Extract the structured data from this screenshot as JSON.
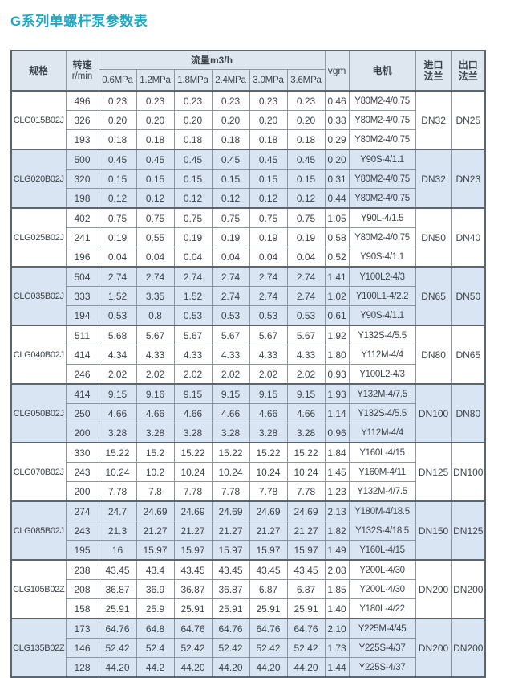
{
  "page": {
    "title": "G系列单螺杆泵参数表"
  },
  "colors": {
    "title": "#1fa7c4",
    "text": "#3d444b",
    "header_bg": "#dee6f0",
    "shaded_row_bg": "#d9e5f3",
    "border_dark": "#5d6670",
    "border_light": "#8d96a0"
  },
  "table": {
    "headers": {
      "spec": "规格",
      "speed_line1": "转速",
      "speed_line2": "r/min",
      "flow_group": "流量m3/h",
      "pressures": [
        "0.6MPa",
        "1.2MPa",
        "1.8MPa",
        "2.4MPa",
        "3.0MPa",
        "3.6MPa"
      ],
      "vgm": "vgm",
      "motor": "电机",
      "inlet_line1": "进口",
      "inlet_line2": "法兰",
      "outlet_line1": "出口",
      "outlet_line2": "法兰"
    },
    "groups": [
      {
        "spec": "CLG015B02J",
        "shaded": false,
        "inlet": "DN32",
        "outlet": "DN25",
        "rows": [
          {
            "speed": "496",
            "flows": [
              "0.23",
              "0.23",
              "0.23",
              "0.23",
              "0.23",
              "0.23"
            ],
            "vgm": "0.46",
            "motor": "Y80M2-4/0.75"
          },
          {
            "speed": "326",
            "flows": [
              "0.20",
              "0.20",
              "0.20",
              "0.20",
              "0.20",
              "0.20"
            ],
            "vgm": "0.38",
            "motor": "Y80M2-4/0.75"
          },
          {
            "speed": "193",
            "flows": [
              "0.18",
              "0.18",
              "0.18",
              "0.18",
              "0.18",
              "0.18"
            ],
            "vgm": "0.29",
            "motor": "Y80M2-4/0.75"
          }
        ]
      },
      {
        "spec": "CLG020B02J",
        "shaded": true,
        "inlet": "DN32",
        "outlet": "DN23",
        "rows": [
          {
            "speed": "500",
            "flows": [
              "0.45",
              "0.45",
              "0.45",
              "0.45",
              "0.45",
              "0.45"
            ],
            "vgm": "0.20",
            "motor": "Y90S-4/1.1"
          },
          {
            "speed": "320",
            "flows": [
              "0.15",
              "0.15",
              "0.15",
              "0.15",
              "0.15",
              "0.15"
            ],
            "vgm": "0.31",
            "motor": "Y80M2-4/0.75"
          },
          {
            "speed": "198",
            "flows": [
              "0.12",
              "0.12",
              "0.12",
              "0.12",
              "0.12",
              "0.12"
            ],
            "vgm": "0.44",
            "motor": "Y80M2-4/0.75"
          }
        ]
      },
      {
        "spec": "CLG025B02J",
        "shaded": false,
        "inlet": "DN50",
        "outlet": "DN40",
        "rows": [
          {
            "speed": "402",
            "flows": [
              "0.75",
              "0.75",
              "0.75",
              "0.75",
              "0.75",
              "0.75"
            ],
            "vgm": "1.05",
            "motor": "Y90L-4/1.5"
          },
          {
            "speed": "241",
            "flows": [
              "0.19",
              "0.55",
              "0.19",
              "0.19",
              "0.19",
              "0.19"
            ],
            "vgm": "0.58",
            "motor": "Y80M2-4/0.75"
          },
          {
            "speed": "196",
            "flows": [
              "0.04",
              "0.04",
              "0.04",
              "0.04",
              "0.04",
              "0.04"
            ],
            "vgm": "0.52",
            "motor": "Y90S-4/1.1"
          }
        ]
      },
      {
        "spec": "CLG035B02J",
        "shaded": true,
        "inlet": "DN65",
        "outlet": "DN50",
        "rows": [
          {
            "speed": "504",
            "flows": [
              "2.74",
              "2.74",
              "2.74",
              "2.74",
              "2.74",
              "2.74"
            ],
            "vgm": "1.41",
            "motor": "Y100L2-4/3"
          },
          {
            "speed": "333",
            "flows": [
              "1.52",
              "3.35",
              "1.52",
              "2.74",
              "2.74",
              "2.74"
            ],
            "vgm": "1.02",
            "motor": "Y100L1-4/2.2"
          },
          {
            "speed": "194",
            "flows": [
              "0.53",
              "0.8",
              "0.53",
              "0.53",
              "0.53",
              "0.53"
            ],
            "vgm": "0.61",
            "motor": "Y90S-4/1.1"
          }
        ]
      },
      {
        "spec": "CLG040B02J",
        "shaded": false,
        "inlet": "DN80",
        "outlet": "DN65",
        "rows": [
          {
            "speed": "511",
            "flows": [
              "5.68",
              "5.67",
              "5.67",
              "5.67",
              "5.67",
              "5.67"
            ],
            "vgm": "1.92",
            "motor": "Y132S-4/5.5"
          },
          {
            "speed": "414",
            "flows": [
              "4.34",
              "4.33",
              "4.33",
              "4.33",
              "4.33",
              "4.33"
            ],
            "vgm": "1.80",
            "motor": "Y112M-4/4"
          },
          {
            "speed": "246",
            "flows": [
              "2.02",
              "2.02",
              "2.02",
              "2.02",
              "2.02",
              "2.02"
            ],
            "vgm": "0.93",
            "motor": "Y100L2-4/3"
          }
        ]
      },
      {
        "spec": "CLG050B02J",
        "shaded": true,
        "inlet": "DN100",
        "outlet": "DN80",
        "rows": [
          {
            "speed": "414",
            "flows": [
              "9.15",
              "9.16",
              "9.15",
              "9.15",
              "9.15",
              "9.15"
            ],
            "vgm": "1.93",
            "motor": "Y132M-4/7.5"
          },
          {
            "speed": "250",
            "flows": [
              "4.66",
              "4.66",
              "4.66",
              "4.66",
              "4.66",
              "4.66"
            ],
            "vgm": "1.14",
            "motor": "Y132S-4/5.5"
          },
          {
            "speed": "200",
            "flows": [
              "3.28",
              "3.28",
              "3.28",
              "3.28",
              "3.28",
              "3.28"
            ],
            "vgm": "0.96",
            "motor": "Y112M-4/4"
          }
        ]
      },
      {
        "spec": "CLG070B02J",
        "shaded": false,
        "inlet": "DN125",
        "outlet": "DN100",
        "rows": [
          {
            "speed": "330",
            "flows": [
              "15.22",
              "15.2",
              "15.22",
              "15.22",
              "15.22",
              "15.22"
            ],
            "vgm": "1.84",
            "motor": "Y160L-4/15"
          },
          {
            "speed": "243",
            "flows": [
              "10.24",
              "10.2",
              "10.24",
              "10.24",
              "10.24",
              "10.24"
            ],
            "vgm": "1.45",
            "motor": "Y160M-4/11"
          },
          {
            "speed": "200",
            "flows": [
              "7.78",
              "7.8",
              "7.78",
              "7.78",
              "7.78",
              "7.78"
            ],
            "vgm": "1.23",
            "motor": "Y132M-4/7.5"
          }
        ]
      },
      {
        "spec": "CLG085B02J",
        "shaded": true,
        "inlet": "DN150",
        "outlet": "DN125",
        "rows": [
          {
            "speed": "274",
            "flows": [
              "24.7",
              "24.69",
              "24.69",
              "24.69",
              "24.69",
              "24.69"
            ],
            "vgm": "2.13",
            "motor": "Y180M-4/18.5"
          },
          {
            "speed": "243",
            "flows": [
              "21.3",
              "21.27",
              "21.27",
              "21.27",
              "21.27",
              "21.27"
            ],
            "vgm": "1.82",
            "motor": "Y132S-4/18.5"
          },
          {
            "speed": "195",
            "flows": [
              "16",
              "15.97",
              "15.97",
              "15.97",
              "15.97",
              "15.97"
            ],
            "vgm": "1.49",
            "motor": "Y160L-4/15"
          }
        ]
      },
      {
        "spec": "CLG105B02Z",
        "shaded": false,
        "inlet": "DN200",
        "outlet": "DN200",
        "rows": [
          {
            "speed": "238",
            "flows": [
              "43.45",
              "43.4",
              "43.45",
              "43.45",
              "43.45",
              "43.45"
            ],
            "vgm": "2.08",
            "motor": "Y200L-4/30"
          },
          {
            "speed": "208",
            "flows": [
              "36.87",
              "36.9",
              "36.87",
              "36.87",
              "6.87",
              "6.87"
            ],
            "vgm": "1.85",
            "motor": "Y200L-4/30"
          },
          {
            "speed": "158",
            "flows": [
              "25.91",
              "25.9",
              "25.91",
              "25.91",
              "25.91",
              "25.91"
            ],
            "vgm": "1.40",
            "motor": "Y180L-4/22"
          }
        ]
      },
      {
        "spec": "CLG135B02Z",
        "shaded": true,
        "inlet": "DN200",
        "outlet": "DN200",
        "rows": [
          {
            "speed": "173",
            "flows": [
              "64.76",
              "64.8",
              "64.76",
              "64.76",
              "64.76",
              "64.76"
            ],
            "vgm": "2.10",
            "motor": "Y225M-4/45"
          },
          {
            "speed": "146",
            "flows": [
              "52.42",
              "52.4",
              "52.42",
              "52.42",
              "52.42",
              "52.42"
            ],
            "vgm": "1.73",
            "motor": "Y225S-4/37"
          },
          {
            "speed": "128",
            "flows": [
              "44.20",
              "44.2",
              "44.20",
              "44.20",
              "44.20",
              "44.20"
            ],
            "vgm": "1.44",
            "motor": "Y225S-4/37"
          }
        ]
      }
    ]
  }
}
